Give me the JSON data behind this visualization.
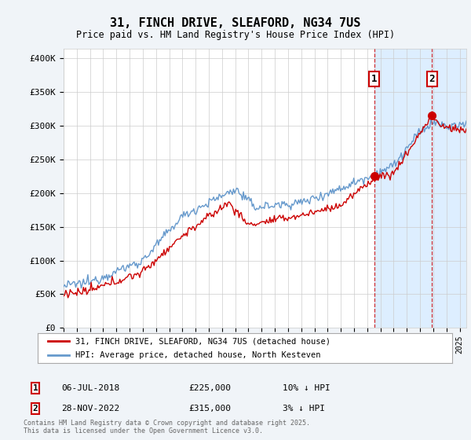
{
  "title": "31, FINCH DRIVE, SLEAFORD, NG34 7US",
  "subtitle": "Price paid vs. HM Land Registry's House Price Index (HPI)",
  "ylabel_ticks": [
    "£0",
    "£50K",
    "£100K",
    "£150K",
    "£200K",
    "£250K",
    "£300K",
    "£350K",
    "£400K"
  ],
  "ytick_values": [
    0,
    50000,
    100000,
    150000,
    200000,
    250000,
    300000,
    350000,
    400000
  ],
  "ylim": [
    0,
    415000
  ],
  "xlim_start": 1995.0,
  "xlim_end": 2025.5,
  "line1_color": "#cc0000",
  "line2_color": "#6699cc",
  "dot1_color": "#cc0000",
  "dot2_color": "#cc0000",
  "marker1_x": 2018.52,
  "marker1_y": 225000,
  "marker2_x": 2022.91,
  "marker2_y": 315000,
  "vline1_x": 2018.52,
  "vline2_x": 2022.91,
  "legend1": "31, FINCH DRIVE, SLEAFORD, NG34 7US (detached house)",
  "legend2": "HPI: Average price, detached house, North Kesteven",
  "annotation1_date": "06-JUL-2018",
  "annotation1_price": "£225,000",
  "annotation1_hpi": "10% ↓ HPI",
  "annotation2_date": "28-NOV-2022",
  "annotation2_price": "£315,000",
  "annotation2_hpi": "3% ↓ HPI",
  "footnote": "Contains HM Land Registry data © Crown copyright and database right 2025.\nThis data is licensed under the Open Government Licence v3.0.",
  "bg_color": "#f0f4f8",
  "plot_bg_color": "#ffffff",
  "span_color": "#ddeeff",
  "grid_color": "#cccccc"
}
